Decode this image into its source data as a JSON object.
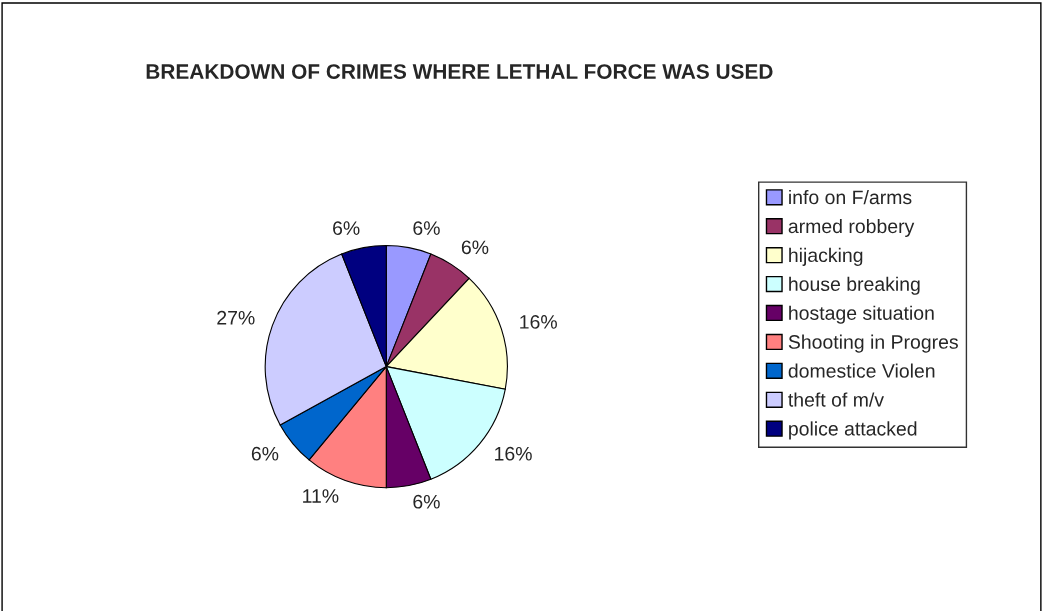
{
  "chart_data": {
    "type": "pie",
    "title": "BREAKDOWN OF CRIMES WHERE LETHAL FORCE WAS USED",
    "categories": [
      "info on F/arms",
      "armed robbery",
      "hijacking",
      "house breaking",
      "hostage situation",
      "Shooting in Progres",
      "domestice Violen",
      "theft of m/v",
      "police attacked"
    ],
    "values": [
      6,
      6,
      16,
      16,
      6,
      11,
      6,
      27,
      6
    ],
    "value_labels": [
      "6%",
      "6%",
      "16%",
      "16%",
      "6%",
      "11%",
      "6%",
      "27%",
      "6%"
    ],
    "colors": [
      "#9999ff",
      "#993366",
      "#ffffcc",
      "#ccffff",
      "#660066",
      "#ff8080",
      "#0066cc",
      "#ccccff",
      "#000080"
    ],
    "legend": "right"
  }
}
